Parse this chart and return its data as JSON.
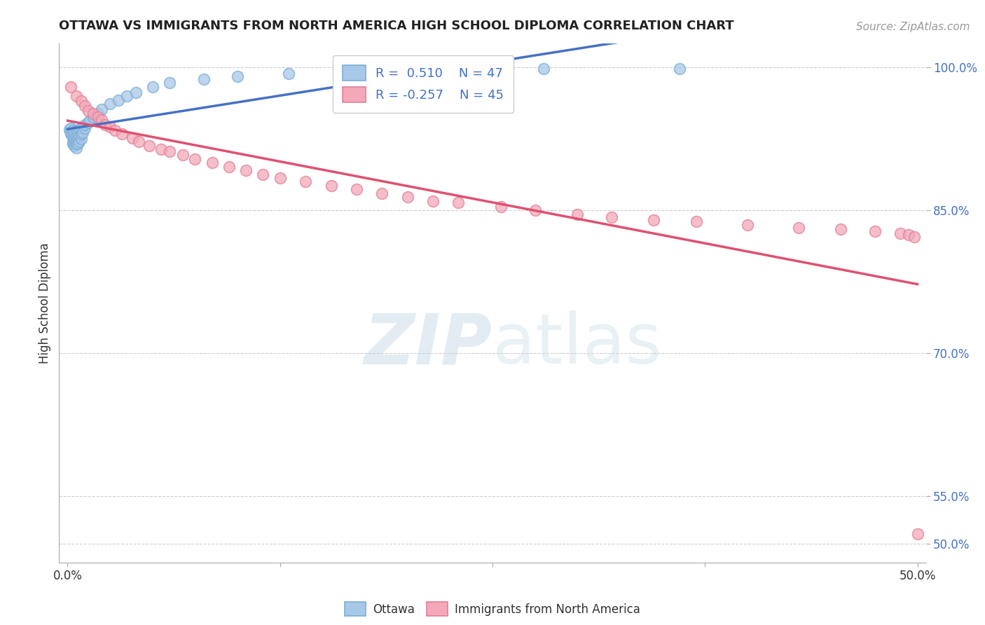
{
  "title": "OTTAWA VS IMMIGRANTS FROM NORTH AMERICA HIGH SCHOOL DIPLOMA CORRELATION CHART",
  "source": "Source: ZipAtlas.com",
  "ylabel": "High School Diploma",
  "R_ottawa": 0.51,
  "N_ottawa": 47,
  "R_immigrants": -0.257,
  "N_immigrants": 45,
  "ottawa_color": "#a8c8e8",
  "ottawa_edge": "#7aaed4",
  "immigrants_color": "#f4a8b8",
  "immigrants_edge": "#e08098",
  "trend_ottawa_color": "#4472c4",
  "trend_immigrants_color": "#e05070",
  "watermark_color": "#dce8f4",
  "ottawa_x": [
    0.001,
    0.002,
    0.002,
    0.002,
    0.003,
    0.003,
    0.003,
    0.003,
    0.004,
    0.004,
    0.004,
    0.004,
    0.005,
    0.005,
    0.005,
    0.005,
    0.005,
    0.006,
    0.006,
    0.006,
    0.007,
    0.007,
    0.007,
    0.008,
    0.008,
    0.008,
    0.009,
    0.01,
    0.01,
    0.012,
    0.013,
    0.015,
    0.018,
    0.02,
    0.025,
    0.03,
    0.035,
    0.04,
    0.05,
    0.06,
    0.08,
    0.1,
    0.13,
    0.16,
    0.2,
    0.28,
    0.36
  ],
  "ottawa_y": [
    0.935,
    0.93,
    0.932,
    0.936,
    0.92,
    0.922,
    0.928,
    0.934,
    0.918,
    0.922,
    0.926,
    0.932,
    0.916,
    0.92,
    0.924,
    0.928,
    0.934,
    0.92,
    0.926,
    0.932,
    0.922,
    0.928,
    0.935,
    0.925,
    0.93,
    0.936,
    0.932,
    0.936,
    0.94,
    0.942,
    0.944,
    0.948,
    0.952,
    0.956,
    0.962,
    0.966,
    0.97,
    0.974,
    0.98,
    0.984,
    0.988,
    0.991,
    0.994,
    0.996,
    0.998,
    0.999,
    0.999
  ],
  "immigrants_x": [
    0.002,
    0.005,
    0.008,
    0.01,
    0.012,
    0.015,
    0.018,
    0.02,
    0.022,
    0.025,
    0.028,
    0.032,
    0.038,
    0.042,
    0.048,
    0.055,
    0.06,
    0.068,
    0.075,
    0.085,
    0.095,
    0.105,
    0.115,
    0.125,
    0.14,
    0.155,
    0.17,
    0.185,
    0.2,
    0.215,
    0.23,
    0.255,
    0.275,
    0.3,
    0.32,
    0.345,
    0.37,
    0.4,
    0.43,
    0.455,
    0.475,
    0.49,
    0.495,
    0.498,
    0.5
  ],
  "immigrants_y": [
    0.98,
    0.97,
    0.965,
    0.96,
    0.955,
    0.952,
    0.948,
    0.945,
    0.94,
    0.938,
    0.934,
    0.93,
    0.926,
    0.922,
    0.918,
    0.914,
    0.912,
    0.908,
    0.904,
    0.9,
    0.896,
    0.892,
    0.888,
    0.884,
    0.88,
    0.876,
    0.872,
    0.868,
    0.864,
    0.86,
    0.858,
    0.854,
    0.85,
    0.846,
    0.843,
    0.84,
    0.838,
    0.835,
    0.832,
    0.83,
    0.828,
    0.826,
    0.824,
    0.822,
    0.51
  ],
  "xlim": [
    -0.005,
    0.505
  ],
  "ylim": [
    0.48,
    1.025
  ],
  "ytick_vals": [
    1.0,
    0.85,
    0.7,
    0.55,
    0.5
  ],
  "ytick_labels": [
    "100.0%",
    "85.0%",
    "70.0%",
    "55.0%",
    "50.0%"
  ],
  "xtick_vals": [
    0.0,
    0.125,
    0.25,
    0.375,
    0.5
  ],
  "xtick_labels": [
    "0.0%",
    "",
    "",
    "",
    "50.0%"
  ],
  "grid_color": "#cccccc",
  "spine_color": "#aaaaaa",
  "title_fontsize": 13,
  "source_fontsize": 11,
  "tick_fontsize": 12,
  "legend_fontsize": 13
}
